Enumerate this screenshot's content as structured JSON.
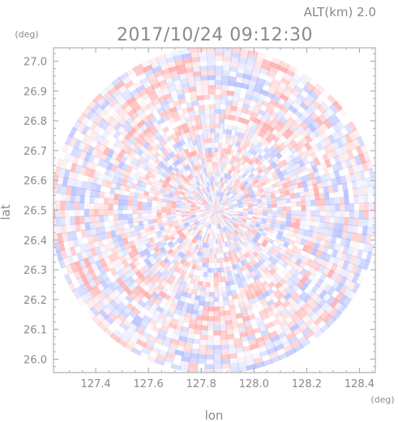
{
  "header": {
    "altitude_label": "ALT(km) 2.0",
    "datetime": "2017/10/24 09:12:30"
  },
  "chart_data": {
    "type": "heatmap",
    "title": "2017/10/24 09:12:30",
    "subtitle": "ALT(km) 2.0",
    "xlabel": "lon",
    "ylabel": "lat",
    "x_unit": "(deg)",
    "y_unit": "(deg)",
    "xlim": [
      127.24,
      128.46
    ],
    "ylim": [
      25.955,
      27.045
    ],
    "x_ticks": [
      "127.4",
      "127.6",
      "127.8",
      "128.0",
      "128.2",
      "128.4"
    ],
    "y_ticks": [
      "26.0",
      "26.1",
      "26.2",
      "26.3",
      "26.4",
      "26.5",
      "26.6",
      "26.7",
      "26.8",
      "26.9",
      "27.0"
    ],
    "center": {
      "lon": 127.85,
      "lat": 26.5
    },
    "radius_deg_lat": 0.55,
    "colors": {
      "positive": "#ffb3b3",
      "negative": "#b8c2ff",
      "frame": "#a0a0a0",
      "text": "#8a8a8a"
    },
    "grid": false
  }
}
